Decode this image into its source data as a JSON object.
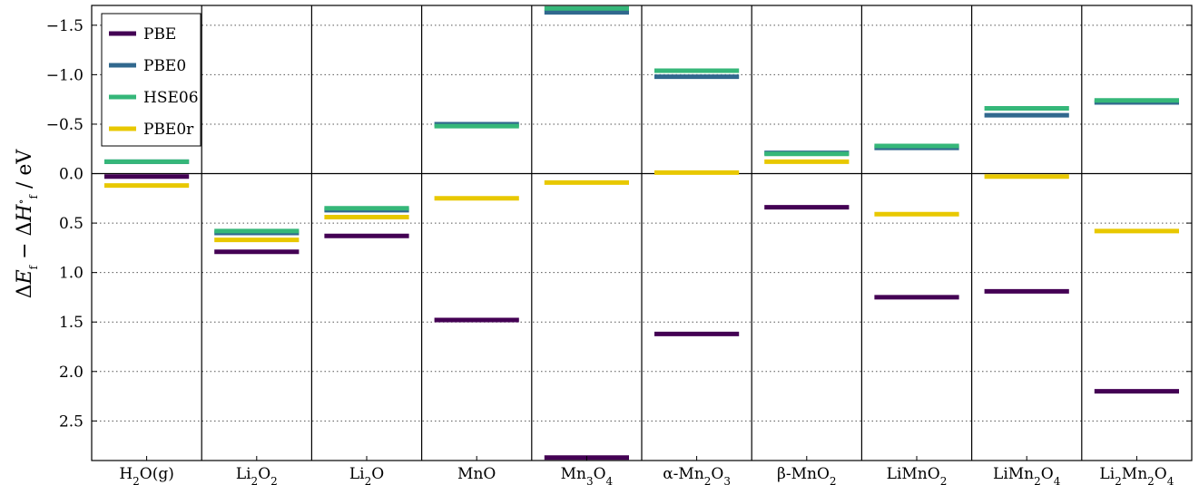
{
  "chart_data": {
    "type": "bar",
    "subtype": "horizontal-level-markers",
    "title": "",
    "xlabel": "",
    "ylabel": "ΔE_f − ΔH°_f / eV",
    "ylabel_parts": [
      "Δ",
      "E",
      "f",
      " − Δ",
      "H",
      "∘",
      "f",
      " / eV"
    ],
    "y_inverted": true,
    "ylim": [
      2.9,
      -1.7
    ],
    "yticks": [
      -1.5,
      -1.0,
      -0.5,
      0.0,
      0.5,
      1.0,
      1.5,
      2.0,
      2.5
    ],
    "ytick_labels": [
      "−1.5",
      "−1.0",
      "−0.5",
      "0.0",
      "0.5",
      "1.0",
      "1.5",
      "2.0",
      "2.5"
    ],
    "grid": "horizontal dotted",
    "legend_position": "top-left",
    "categories": [
      {
        "label": [
          {
            "t": "H"
          },
          {
            "t": "2",
            "sub": true
          },
          {
            "t": "O(g)"
          }
        ]
      },
      {
        "label": [
          {
            "t": "Li"
          },
          {
            "t": "2",
            "sub": true
          },
          {
            "t": "O"
          },
          {
            "t": "2",
            "sub": true
          }
        ]
      },
      {
        "label": [
          {
            "t": "Li"
          },
          {
            "t": "2",
            "sub": true
          },
          {
            "t": "O"
          }
        ]
      },
      {
        "label": [
          {
            "t": "MnO"
          }
        ]
      },
      {
        "label": [
          {
            "t": "Mn"
          },
          {
            "t": "3",
            "sub": true
          },
          {
            "t": "O"
          },
          {
            "t": "4",
            "sub": true
          }
        ]
      },
      {
        "label": [
          {
            "t": "α-Mn"
          },
          {
            "t": "2",
            "sub": true
          },
          {
            "t": "O"
          },
          {
            "t": "3",
            "sub": true
          }
        ]
      },
      {
        "label": [
          {
            "t": "β-MnO"
          },
          {
            "t": "2",
            "sub": true
          }
        ]
      },
      {
        "label": [
          {
            "t": "LiMnO"
          },
          {
            "t": "2",
            "sub": true
          }
        ]
      },
      {
        "label": [
          {
            "t": "LiMn"
          },
          {
            "t": "2",
            "sub": true
          },
          {
            "t": "O"
          },
          {
            "t": "4",
            "sub": true
          }
        ]
      },
      {
        "label": [
          {
            "t": "Li"
          },
          {
            "t": "2",
            "sub": true
          },
          {
            "t": "Mn"
          },
          {
            "t": "2",
            "sub": true
          },
          {
            "t": "O"
          },
          {
            "t": "4",
            "sub": true
          }
        ]
      }
    ],
    "series": [
      {
        "name": "PBE",
        "color": "#440154",
        "values": [
          0.03,
          0.79,
          0.63,
          1.48,
          2.87,
          1.62,
          0.34,
          1.25,
          1.19,
          2.2
        ]
      },
      {
        "name": "PBE0",
        "color": "#31688e",
        "values": [
          -0.12,
          0.6,
          0.37,
          -0.5,
          -1.63,
          -0.98,
          -0.21,
          -0.26,
          -0.59,
          -0.72
        ]
      },
      {
        "name": "HSE06",
        "color": "#35b779",
        "values": [
          -0.12,
          0.58,
          0.35,
          -0.48,
          -1.67,
          -1.04,
          -0.2,
          -0.28,
          -0.66,
          -0.74
        ]
      },
      {
        "name": "PBE0r",
        "color": "#e8c800",
        "values": [
          0.12,
          0.67,
          0.44,
          0.25,
          0.09,
          -0.01,
          -0.12,
          0.41,
          0.03,
          0.58
        ]
      }
    ]
  }
}
